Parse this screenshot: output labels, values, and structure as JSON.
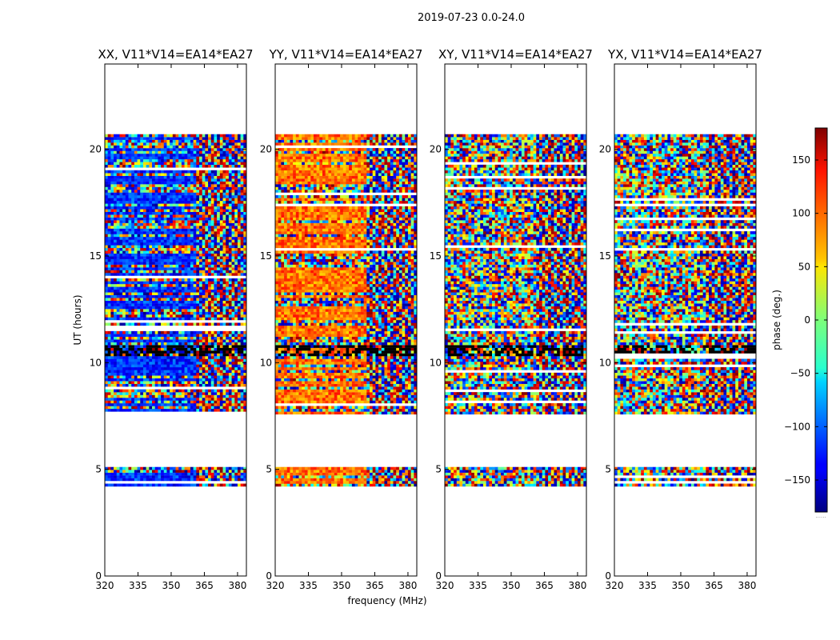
{
  "suptitle": "2019-07-23 0.0-24.0",
  "xlabel": "frequency (MHz)",
  "ylabel": "UT (hours)",
  "colorbar_label": "phase (deg.)",
  "colorbar_note": "......",
  "chart_data": {
    "type": "heatmap",
    "colormap": "jet",
    "xlim": [
      320,
      384
    ],
    "ylim": [
      0,
      24
    ],
    "clim": [
      -180,
      180
    ],
    "x_ticks": [
      "320",
      "335",
      "350",
      "365",
      "380"
    ],
    "y_ticks": [
      "0",
      "5",
      "10",
      "15",
      "20"
    ],
    "colorbar_ticks": [
      "150",
      "100",
      "50",
      "0",
      "−50",
      "−100",
      "−150"
    ],
    "colorbar_tick_values": [
      150,
      100,
      50,
      0,
      -50,
      -100,
      -150
    ],
    "panels": [
      {
        "title": "XX, V11*V14=EA14*EA27",
        "mean_phase": -120
      },
      {
        "title": "YY, V11*V14=EA14*EA27",
        "mean_phase": 95
      },
      {
        "title": "XY, V11*V14=EA14*EA27",
        "mean_phase": null
      },
      {
        "title": "YX, V11*V14=EA14*EA27",
        "mean_phase": null
      }
    ],
    "data_ut_ranges": [
      [
        4.2,
        5.0
      ],
      [
        7.5,
        20.6
      ]
    ],
    "flagged_ut_ranges": [
      [
        10.3,
        10.8
      ]
    ],
    "fringe_boundary_mhz": 361
  }
}
